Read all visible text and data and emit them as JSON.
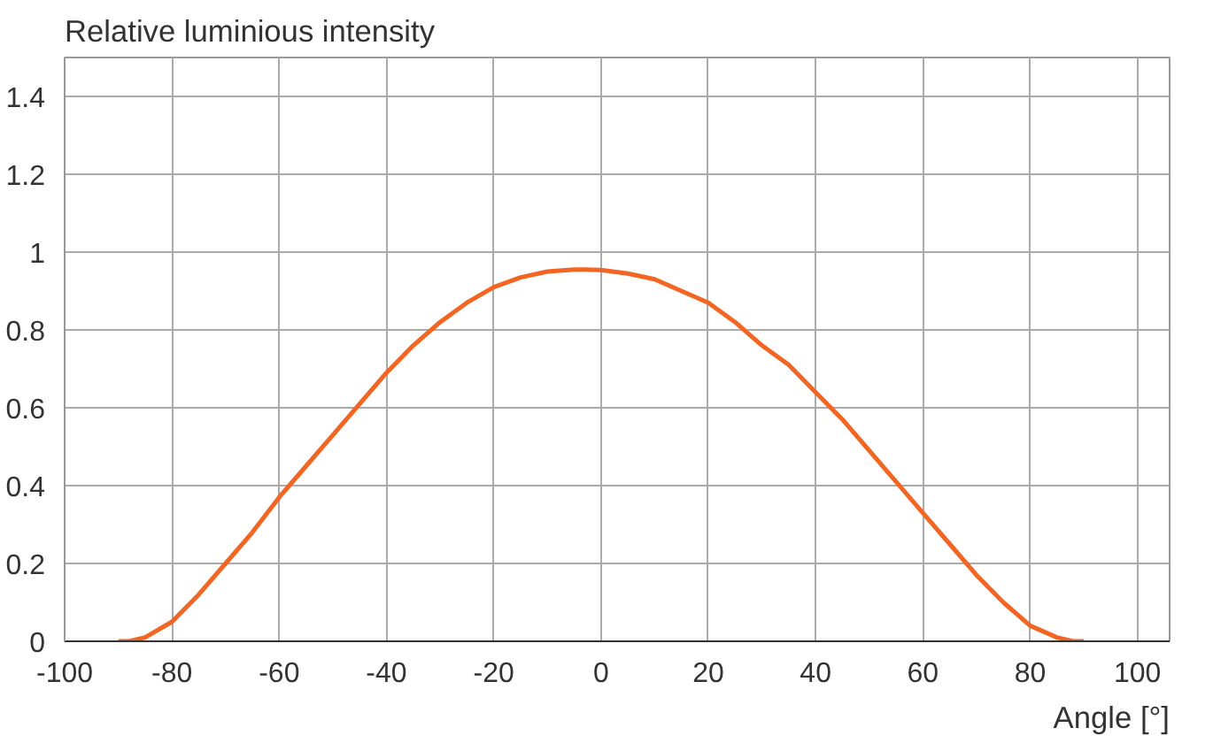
{
  "chart_data": {
    "type": "line",
    "xlabel": "Angle [°]",
    "ylabel": "Relative luminious intensity",
    "x": [
      -90,
      -88,
      -85,
      -80,
      -75,
      -70,
      -65,
      -60,
      -55,
      -50,
      -45,
      -40,
      -35,
      -30,
      -25,
      -20,
      -15,
      -10,
      -5,
      -3,
      0,
      5,
      10,
      15,
      20,
      25,
      30,
      35,
      40,
      45,
      50,
      55,
      60,
      65,
      70,
      75,
      80,
      85,
      88,
      90
    ],
    "series": [
      {
        "color": "#f26522",
        "values": [
          0,
          0,
          0.01,
          0.05,
          0.12,
          0.2,
          0.28,
          0.37,
          0.45,
          0.53,
          0.61,
          0.69,
          0.76,
          0.82,
          0.87,
          0.91,
          0.935,
          0.95,
          0.955,
          0.955,
          0.954,
          0.945,
          0.93,
          0.9,
          0.87,
          0.82,
          0.76,
          0.71,
          0.64,
          0.57,
          0.49,
          0.41,
          0.33,
          0.25,
          0.17,
          0.1,
          0.04,
          0.01,
          0,
          0
        ]
      }
    ],
    "xlim": [
      -100,
      106
    ],
    "ylim": [
      0,
      1.5
    ],
    "xticks": [
      -100,
      -80,
      -60,
      -40,
      -20,
      0,
      20,
      40,
      60,
      80,
      100
    ],
    "yticks": [
      0,
      0.2,
      0.4,
      0.6,
      0.8,
      1,
      1.2,
      1.4
    ],
    "grid": true,
    "marker": "none",
    "line_style": "solid"
  }
}
